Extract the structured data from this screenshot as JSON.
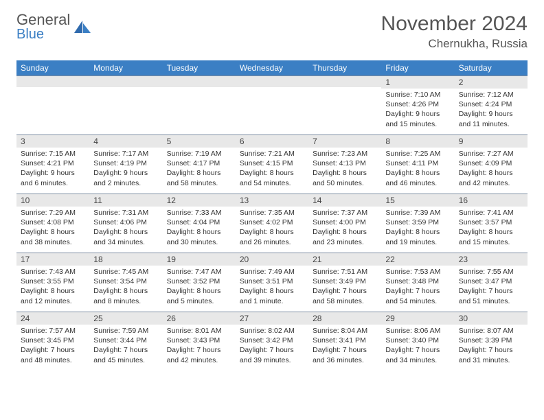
{
  "logo": {
    "line1": "General",
    "line2": "Blue"
  },
  "title": "November 2024",
  "location": "Chernukha, Russia",
  "colors": {
    "header_bg": "#3b7fc4",
    "header_text": "#ffffff",
    "daynum_bg": "#e8e8e8",
    "border": "#7a8ba0",
    "text": "#333333",
    "logo_gray": "#555555",
    "logo_blue": "#3b7fc4",
    "background": "#ffffff"
  },
  "typography": {
    "month_title_size": 30,
    "location_size": 17,
    "weekday_size": 12,
    "daynum_size": 12,
    "daytext_size": 10.5
  },
  "weekdays": [
    "Sunday",
    "Monday",
    "Tuesday",
    "Wednesday",
    "Thursday",
    "Friday",
    "Saturday"
  ],
  "weeks": [
    [
      {
        "day": "",
        "lines": []
      },
      {
        "day": "",
        "lines": []
      },
      {
        "day": "",
        "lines": []
      },
      {
        "day": "",
        "lines": []
      },
      {
        "day": "",
        "lines": []
      },
      {
        "day": "1",
        "lines": [
          "Sunrise: 7:10 AM",
          "Sunset: 4:26 PM",
          "Daylight: 9 hours and 15 minutes."
        ]
      },
      {
        "day": "2",
        "lines": [
          "Sunrise: 7:12 AM",
          "Sunset: 4:24 PM",
          "Daylight: 9 hours and 11 minutes."
        ]
      }
    ],
    [
      {
        "day": "3",
        "lines": [
          "Sunrise: 7:15 AM",
          "Sunset: 4:21 PM",
          "Daylight: 9 hours and 6 minutes."
        ]
      },
      {
        "day": "4",
        "lines": [
          "Sunrise: 7:17 AM",
          "Sunset: 4:19 PM",
          "Daylight: 9 hours and 2 minutes."
        ]
      },
      {
        "day": "5",
        "lines": [
          "Sunrise: 7:19 AM",
          "Sunset: 4:17 PM",
          "Daylight: 8 hours and 58 minutes."
        ]
      },
      {
        "day": "6",
        "lines": [
          "Sunrise: 7:21 AM",
          "Sunset: 4:15 PM",
          "Daylight: 8 hours and 54 minutes."
        ]
      },
      {
        "day": "7",
        "lines": [
          "Sunrise: 7:23 AM",
          "Sunset: 4:13 PM",
          "Daylight: 8 hours and 50 minutes."
        ]
      },
      {
        "day": "8",
        "lines": [
          "Sunrise: 7:25 AM",
          "Sunset: 4:11 PM",
          "Daylight: 8 hours and 46 minutes."
        ]
      },
      {
        "day": "9",
        "lines": [
          "Sunrise: 7:27 AM",
          "Sunset: 4:09 PM",
          "Daylight: 8 hours and 42 minutes."
        ]
      }
    ],
    [
      {
        "day": "10",
        "lines": [
          "Sunrise: 7:29 AM",
          "Sunset: 4:08 PM",
          "Daylight: 8 hours and 38 minutes."
        ]
      },
      {
        "day": "11",
        "lines": [
          "Sunrise: 7:31 AM",
          "Sunset: 4:06 PM",
          "Daylight: 8 hours and 34 minutes."
        ]
      },
      {
        "day": "12",
        "lines": [
          "Sunrise: 7:33 AM",
          "Sunset: 4:04 PM",
          "Daylight: 8 hours and 30 minutes."
        ]
      },
      {
        "day": "13",
        "lines": [
          "Sunrise: 7:35 AM",
          "Sunset: 4:02 PM",
          "Daylight: 8 hours and 26 minutes."
        ]
      },
      {
        "day": "14",
        "lines": [
          "Sunrise: 7:37 AM",
          "Sunset: 4:00 PM",
          "Daylight: 8 hours and 23 minutes."
        ]
      },
      {
        "day": "15",
        "lines": [
          "Sunrise: 7:39 AM",
          "Sunset: 3:59 PM",
          "Daylight: 8 hours and 19 minutes."
        ]
      },
      {
        "day": "16",
        "lines": [
          "Sunrise: 7:41 AM",
          "Sunset: 3:57 PM",
          "Daylight: 8 hours and 15 minutes."
        ]
      }
    ],
    [
      {
        "day": "17",
        "lines": [
          "Sunrise: 7:43 AM",
          "Sunset: 3:55 PM",
          "Daylight: 8 hours and 12 minutes."
        ]
      },
      {
        "day": "18",
        "lines": [
          "Sunrise: 7:45 AM",
          "Sunset: 3:54 PM",
          "Daylight: 8 hours and 8 minutes."
        ]
      },
      {
        "day": "19",
        "lines": [
          "Sunrise: 7:47 AM",
          "Sunset: 3:52 PM",
          "Daylight: 8 hours and 5 minutes."
        ]
      },
      {
        "day": "20",
        "lines": [
          "Sunrise: 7:49 AM",
          "Sunset: 3:51 PM",
          "Daylight: 8 hours and 1 minute."
        ]
      },
      {
        "day": "21",
        "lines": [
          "Sunrise: 7:51 AM",
          "Sunset: 3:49 PM",
          "Daylight: 7 hours and 58 minutes."
        ]
      },
      {
        "day": "22",
        "lines": [
          "Sunrise: 7:53 AM",
          "Sunset: 3:48 PM",
          "Daylight: 7 hours and 54 minutes."
        ]
      },
      {
        "day": "23",
        "lines": [
          "Sunrise: 7:55 AM",
          "Sunset: 3:47 PM",
          "Daylight: 7 hours and 51 minutes."
        ]
      }
    ],
    [
      {
        "day": "24",
        "lines": [
          "Sunrise: 7:57 AM",
          "Sunset: 3:45 PM",
          "Daylight: 7 hours and 48 minutes."
        ]
      },
      {
        "day": "25",
        "lines": [
          "Sunrise: 7:59 AM",
          "Sunset: 3:44 PM",
          "Daylight: 7 hours and 45 minutes."
        ]
      },
      {
        "day": "26",
        "lines": [
          "Sunrise: 8:01 AM",
          "Sunset: 3:43 PM",
          "Daylight: 7 hours and 42 minutes."
        ]
      },
      {
        "day": "27",
        "lines": [
          "Sunrise: 8:02 AM",
          "Sunset: 3:42 PM",
          "Daylight: 7 hours and 39 minutes."
        ]
      },
      {
        "day": "28",
        "lines": [
          "Sunrise: 8:04 AM",
          "Sunset: 3:41 PM",
          "Daylight: 7 hours and 36 minutes."
        ]
      },
      {
        "day": "29",
        "lines": [
          "Sunrise: 8:06 AM",
          "Sunset: 3:40 PM",
          "Daylight: 7 hours and 34 minutes."
        ]
      },
      {
        "day": "30",
        "lines": [
          "Sunrise: 8:07 AM",
          "Sunset: 3:39 PM",
          "Daylight: 7 hours and 31 minutes."
        ]
      }
    ]
  ]
}
